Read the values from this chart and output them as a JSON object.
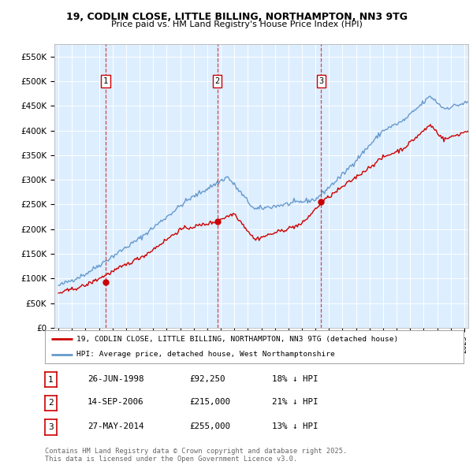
{
  "title_line1": "19, CODLIN CLOSE, LITTLE BILLING, NORTHAMPTON, NN3 9TG",
  "title_line2": "Price paid vs. HM Land Registry's House Price Index (HPI)",
  "ylim": [
    0,
    575000
  ],
  "yticks": [
    0,
    50000,
    100000,
    150000,
    200000,
    250000,
    300000,
    350000,
    400000,
    450000,
    500000,
    550000
  ],
  "ytick_labels": [
    "£0",
    "£50K",
    "£100K",
    "£150K",
    "£200K",
    "£250K",
    "£300K",
    "£350K",
    "£400K",
    "£450K",
    "£500K",
    "£550K"
  ],
  "sale_prices": [
    92250,
    215000,
    255000
  ],
  "sale_labels": [
    "1",
    "2",
    "3"
  ],
  "sale_pct_hpi": [
    "18% ↓ HPI",
    "21% ↓ HPI",
    "13% ↓ HPI"
  ],
  "sale_date_strs": [
    "26-JUN-1998",
    "14-SEP-2006",
    "27-MAY-2014"
  ],
  "sale_price_strs": [
    "£92,250",
    "£215,000",
    "£255,000"
  ],
  "red_line_color": "#cc0000",
  "blue_line_color": "#6699cc",
  "plot_bg_color": "#ddeeff",
  "legend_label_red": "19, CODLIN CLOSE, LITTLE BILLING, NORTHAMPTON, NN3 9TG (detached house)",
  "legend_label_blue": "HPI: Average price, detached house, West Northamptonshire",
  "footer_text": "Contains HM Land Registry data © Crown copyright and database right 2025.\nThis data is licensed under the Open Government Licence v3.0."
}
